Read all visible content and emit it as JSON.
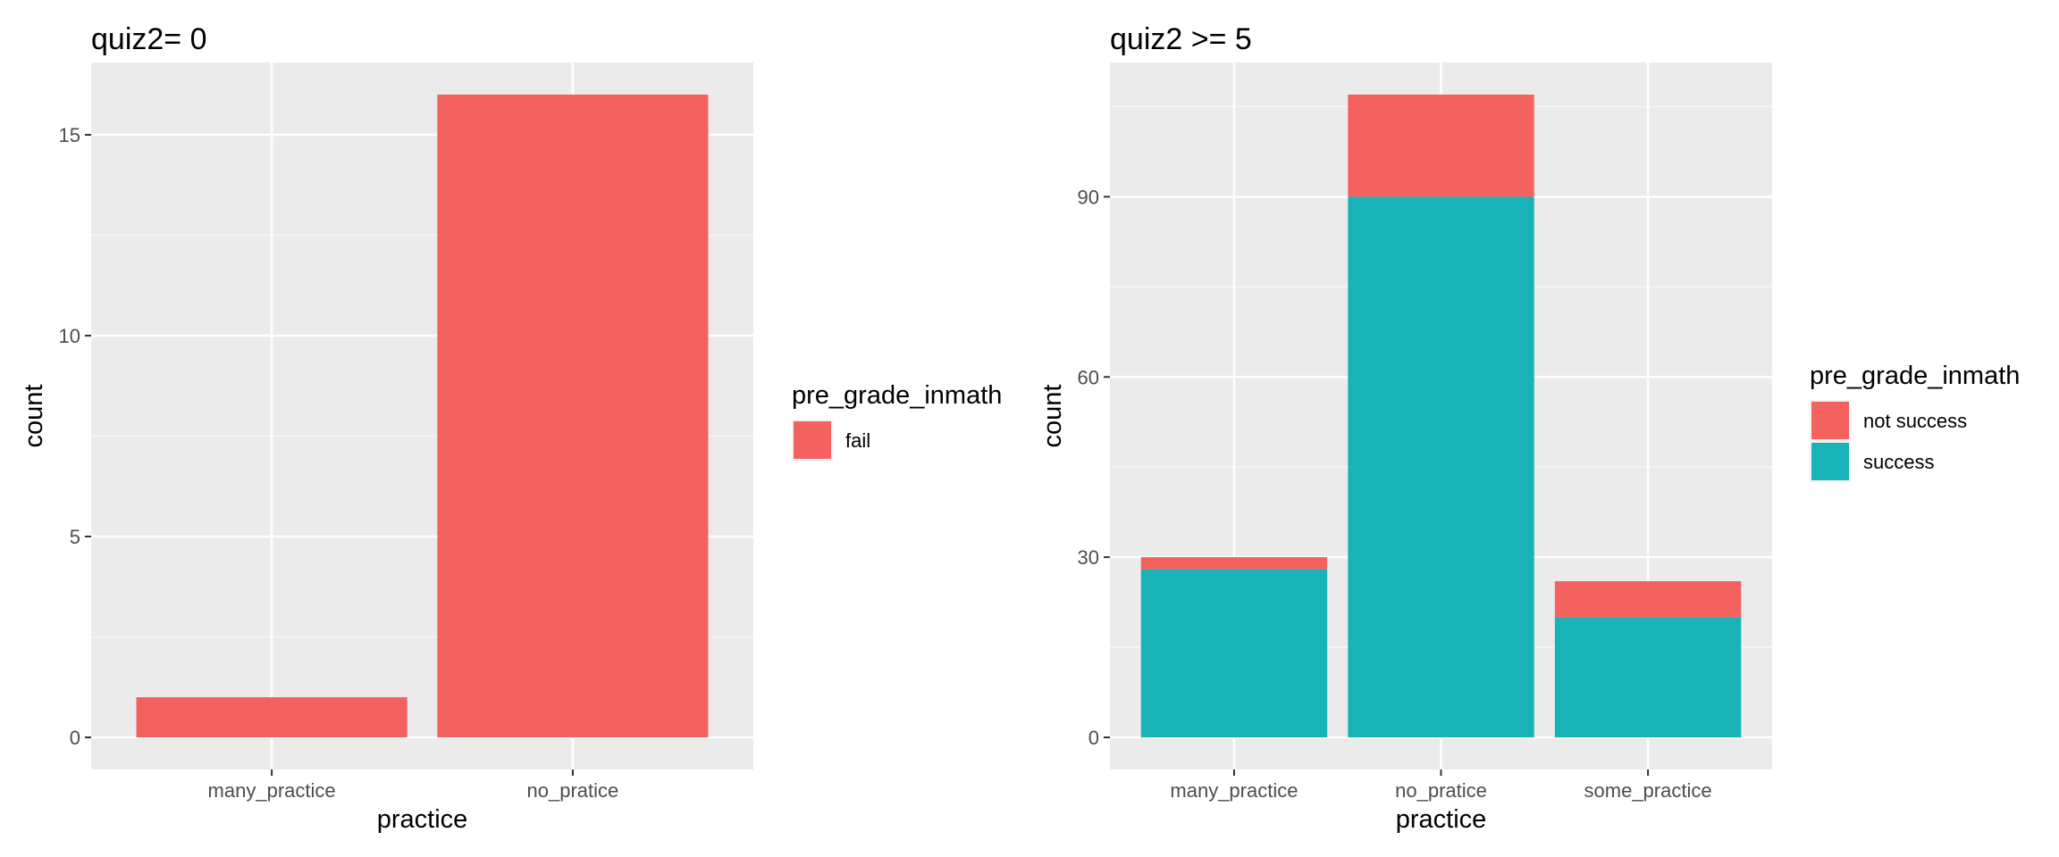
{
  "chart_data": [
    {
      "type": "bar",
      "stacked": true,
      "title": "quiz2= 0",
      "xlabel": "practice",
      "ylabel": "count",
      "categories": [
        "many_practice",
        "no_pratice"
      ],
      "ylim": [
        -0.8,
        16.8
      ],
      "yticks": [
        0,
        5,
        10,
        15
      ],
      "grid": true,
      "legend": {
        "title": "pre_grade_inmath",
        "position": "right"
      },
      "series": [
        {
          "name": "fail",
          "color": "#F46260",
          "values": [
            1,
            16
          ]
        }
      ]
    },
    {
      "type": "bar",
      "stacked": true,
      "title": "quiz2 >= 5",
      "xlabel": "practice",
      "ylabel": "count",
      "categories": [
        "many_practice",
        "no_pratice",
        "some_practice"
      ],
      "ylim": [
        -5.35,
        112.35
      ],
      "yticks": [
        0,
        30,
        60,
        90
      ],
      "grid": true,
      "legend": {
        "title": "pre_grade_inmath",
        "position": "right"
      },
      "series": [
        {
          "name": "success",
          "color": "#19B3B7",
          "values": [
            28,
            90,
            20
          ]
        },
        {
          "name": "not success",
          "color": "#F46260",
          "values": [
            2,
            17,
            6
          ]
        }
      ],
      "legend_order": [
        "not success",
        "success"
      ]
    }
  ]
}
